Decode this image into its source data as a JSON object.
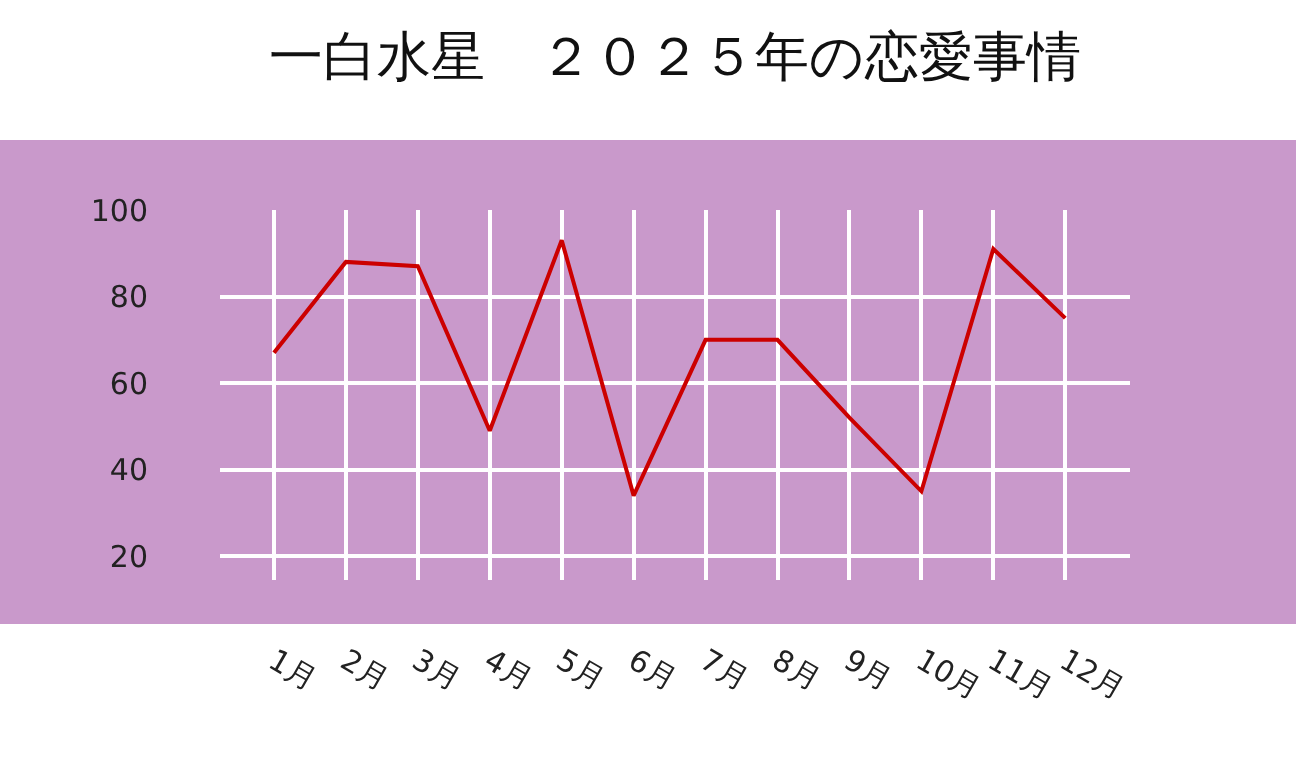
{
  "chart_data": {
    "type": "line",
    "title": "一白水星　２０２５年の恋愛事情",
    "categories": [
      "1月",
      "2月",
      "3月",
      "4月",
      "5月",
      "6月",
      "7月",
      "8月",
      "9月",
      "10月",
      "11月",
      "12月"
    ],
    "series": [
      {
        "color": "#cc0000",
        "values": [
          67,
          88,
          87,
          49,
          93,
          34,
          70,
          70,
          52,
          35,
          91,
          75
        ]
      }
    ],
    "ylim": [
      14.5,
      100
    ],
    "yticks": [
      20,
      40,
      60,
      80,
      100
    ],
    "grid": true,
    "legend": false,
    "marker": "none",
    "line_style": "solid"
  }
}
